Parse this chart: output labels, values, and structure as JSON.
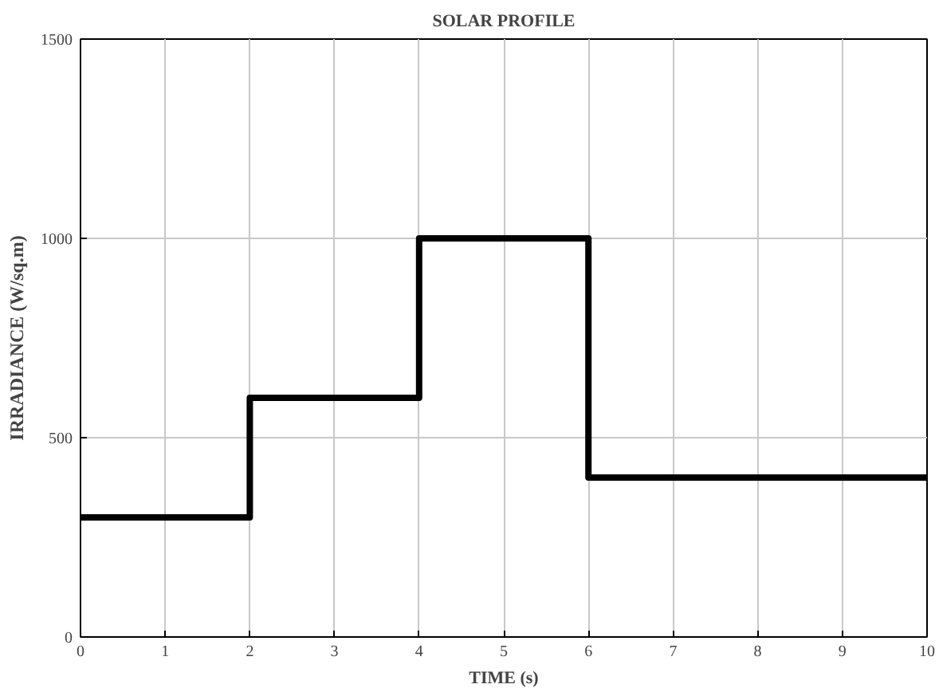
{
  "chart_data": {
    "type": "step",
    "title": "SOLAR PROFILE",
    "xlabel": "TIME (s)",
    "ylabel": "IRRADIANCE (W/sq.m)",
    "x": [
      0,
      2,
      4,
      6,
      10
    ],
    "series": [
      {
        "color": "#000000",
        "values": [
          300,
          600,
          1000,
          400,
          400
        ]
      }
    ],
    "xlim": [
      0,
      10
    ],
    "xticks": [
      0,
      1,
      2,
      3,
      4,
      5,
      6,
      7,
      8,
      9,
      10
    ],
    "ylim": [
      0,
      1500
    ],
    "yticks": [
      0,
      500,
      1000,
      1500
    ],
    "grid": true,
    "marker": "none",
    "line_style": "solid"
  }
}
